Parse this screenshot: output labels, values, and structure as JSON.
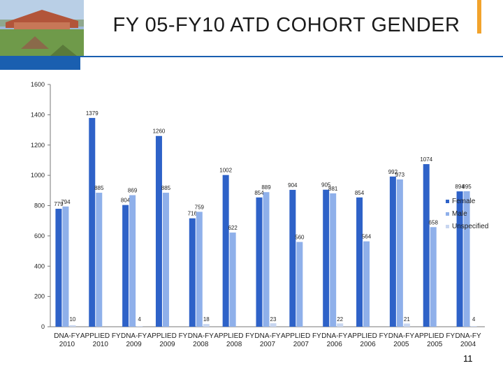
{
  "slide": {
    "title": "FY 05-FY10 ATD COHORT GENDER",
    "page_number": "11",
    "brand_color": "#1a5fb0",
    "accent_color": "#f2a32c"
  },
  "chart_data": {
    "type": "bar",
    "title": "",
    "xlabel": "",
    "ylabel": "",
    "ylim": [
      0,
      1600
    ],
    "yticks": [
      0,
      200,
      400,
      600,
      800,
      1000,
      1200,
      1400,
      1600
    ],
    "grid": false,
    "legend_position": "right",
    "categories": [
      "DNA-FY 2010",
      "APPLIED FY 2010",
      "DNA-FY 2009",
      "APPLIED FY 2009",
      "DNA-FY 2008",
      "APPLIED FY 2008",
      "DNA-FY 2007",
      "APPLIED FY 2007",
      "DNA-FY 2006",
      "APPLIED FY 2006",
      "DNA-FY 2005",
      "APPLIED FY 2005",
      "DNA-FY 2004"
    ],
    "series": [
      {
        "name": "Female",
        "color": "#2e62c8",
        "values": [
          779,
          1379,
          804,
          1260,
          716,
          1002,
          854,
          904,
          905,
          854,
          992,
          1074,
          894
        ]
      },
      {
        "name": "Male",
        "color": "#8fb0ea",
        "values": [
          794,
          885,
          869,
          885,
          759,
          622,
          889,
          560,
          881,
          564,
          973,
          658,
          895
        ]
      },
      {
        "name": "Unspecified",
        "color": "#c8d6f0",
        "values": [
          10,
          0,
          4,
          0,
          18,
          0,
          23,
          0,
          22,
          0,
          21,
          0,
          4
        ]
      }
    ]
  }
}
